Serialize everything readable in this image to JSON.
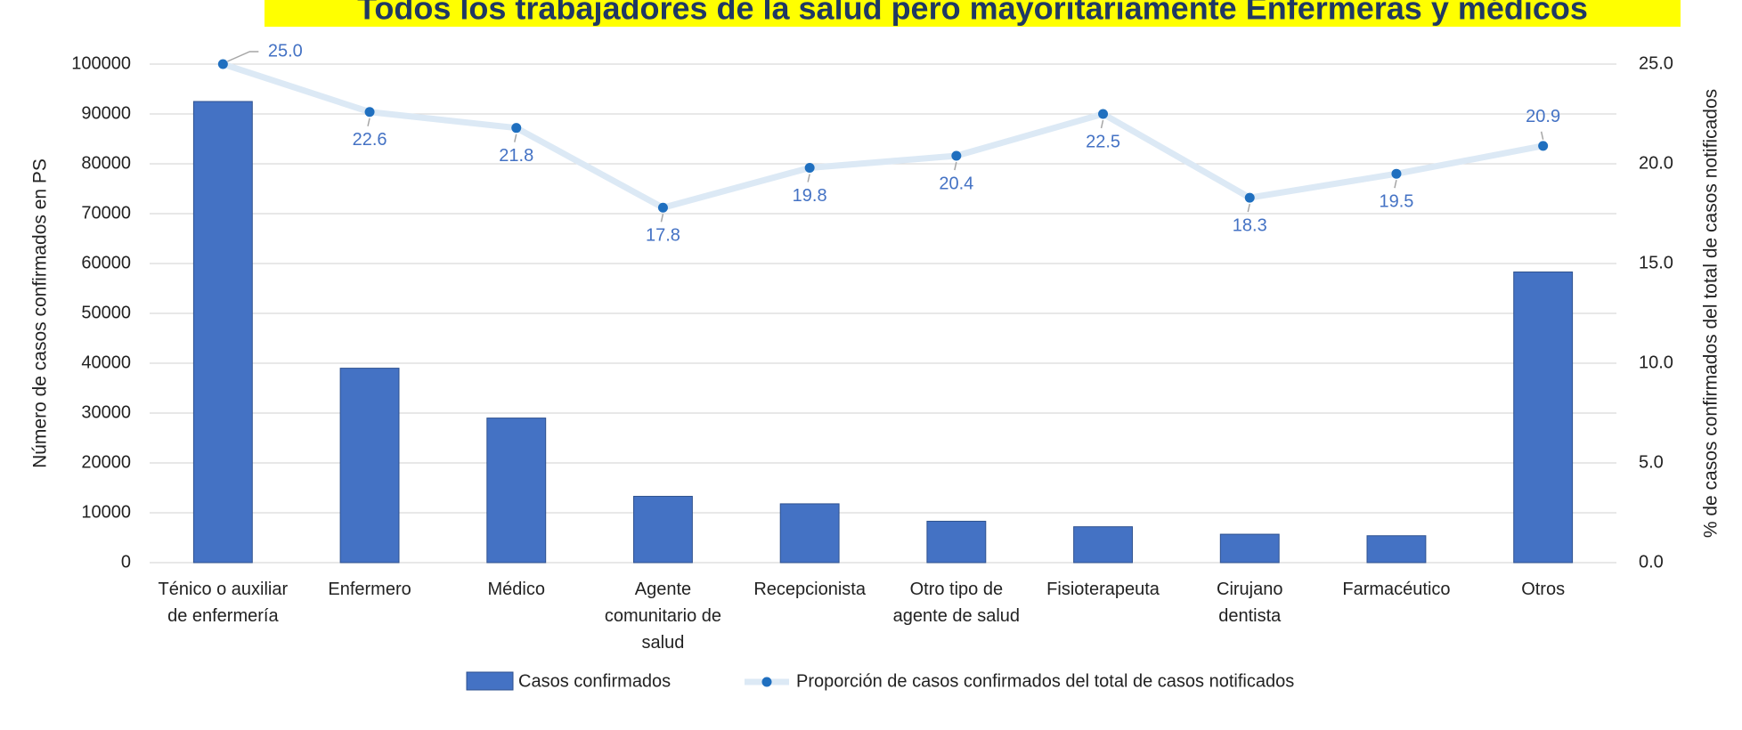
{
  "chart_data": {
    "type": "bar_line",
    "title": "Todos los trabajadores de la salud pero mayoritariamente Enfermeras y médicos",
    "y_label": "Número de casos confirmados en PS",
    "y2_label": "% de casos confirmados del total de casos notificados",
    "categories": [
      "Ténico o auxiliar de enfermería",
      "Enfermero",
      "Médico",
      "Agente comunitario de salud",
      "Recepcionista",
      "Otro tipo de agente de salud",
      "Fisioterapeuta",
      "Cirujano dentista",
      "Farmacéutico",
      "Otros"
    ],
    "series": [
      {
        "name": "Casos confirmados",
        "type": "bar",
        "color": "#4472c4",
        "values": [
          92500,
          39000,
          29000,
          13300,
          11800,
          8300,
          7200,
          5700,
          5400,
          58300
        ]
      },
      {
        "name": "Proporción de casos confirmados del total de casos notificados",
        "type": "line",
        "axis": "y2",
        "color": "#dce9f5",
        "marker_color": "#1f6fbf",
        "values": [
          25,
          22.6,
          21.8,
          17.8,
          19.8,
          20.4,
          22.5,
          18.3,
          19.5,
          20.9
        ],
        "value_labels": [
          "25.0",
          "22.6",
          "21.8",
          "17.8",
          "19.8",
          "20.4",
          "22.5",
          "18.3",
          "19.5",
          "20.9"
        ]
      }
    ],
    "ylim": [
      0,
      100000
    ],
    "yticks": [
      0,
      10000,
      20000,
      30000,
      40000,
      50000,
      60000,
      70000,
      80000,
      90000,
      100000
    ],
    "y2lim": [
      0,
      25
    ],
    "y2ticks": [
      {
        "value": 0,
        "label": "0.0"
      },
      {
        "value": 5,
        "label": "5.0"
      },
      {
        "value": 10,
        "label": "10.0"
      },
      {
        "value": 15,
        "label": "15.0"
      },
      {
        "value": 20,
        "label": "20.0"
      },
      {
        "value": 25,
        "label": "25.0"
      }
    ],
    "grid": true,
    "legend": "bottom"
  }
}
